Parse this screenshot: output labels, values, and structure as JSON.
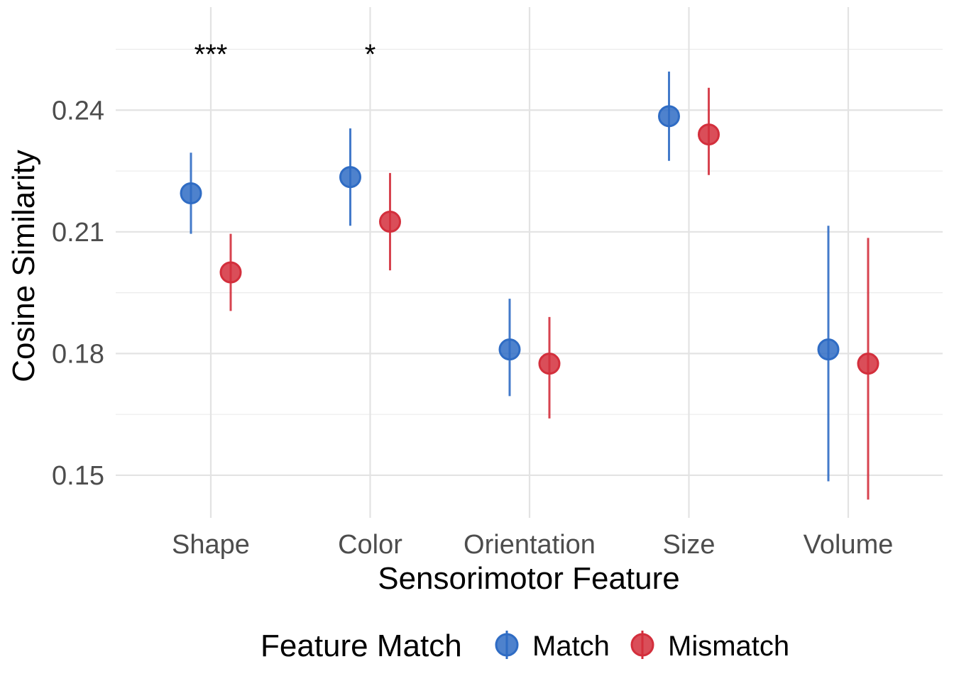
{
  "chart_data": {
    "type": "scatter",
    "xlabel": "Sensorimotor Feature",
    "ylabel": "Cosine Similarity",
    "categories": [
      "Shape",
      "Color",
      "Orientation",
      "Size",
      "Volume"
    ],
    "ylim": [
      0.1395,
      0.2654
    ],
    "yticks": [
      0.15,
      0.18,
      0.21,
      0.24
    ],
    "ytick_labels": [
      "0.15",
      "0.18",
      "0.21",
      "0.24"
    ],
    "grid": true,
    "legend": {
      "title": "Feature Match",
      "position": "bottom"
    },
    "series": [
      {
        "name": "Match",
        "color": "#2f6cc4",
        "values": [
          0.2195,
          0.2235,
          0.181,
          0.2385,
          0.181
        ],
        "lower": [
          0.2095,
          0.2115,
          0.1695,
          0.2275,
          0.1485
        ],
        "upper": [
          0.2295,
          0.2355,
          0.1935,
          0.2495,
          0.2115
        ]
      },
      {
        "name": "Mismatch",
        "color": "#d32f3c",
        "values": [
          0.2,
          0.2125,
          0.1775,
          0.234,
          0.1775
        ],
        "lower": [
          0.1905,
          0.2005,
          0.164,
          0.224,
          0.144
        ],
        "upper": [
          0.2095,
          0.2245,
          0.189,
          0.2455,
          0.2085
        ]
      }
    ],
    "annotations": [
      {
        "category": "Shape",
        "text": "***"
      },
      {
        "category": "Color",
        "text": "*"
      }
    ]
  }
}
